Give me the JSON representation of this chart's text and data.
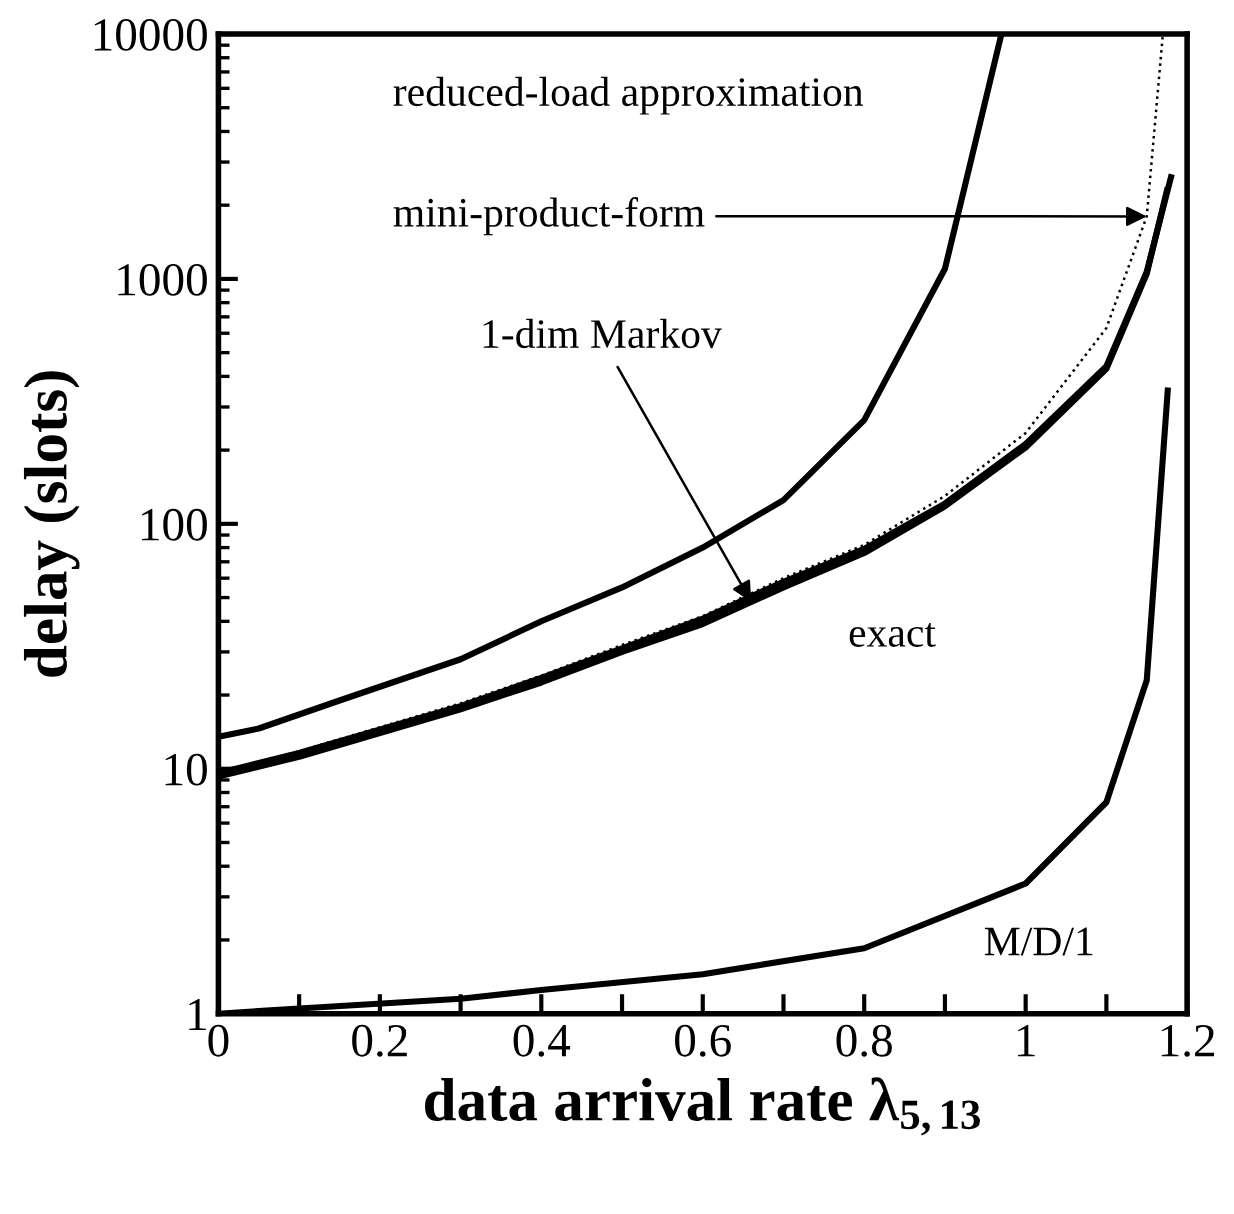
{
  "chart_data": {
    "type": "line",
    "xlabel": "data arrival rate λ$_{5,13}$",
    "ylabel": "delay (slots)",
    "log": "y",
    "xlim": [
      0,
      1.2
    ],
    "ylim": [
      1,
      10000
    ],
    "xticks": [
      0,
      {
        "value": 0.1,
        "label": null
      },
      0.2,
      {
        "value": 0.3,
        "label": null
      },
      0.4,
      {
        "value": 0.5,
        "label": null
      },
      0.6,
      {
        "value": 0.7,
        "label": null
      },
      0.8,
      {
        "value": 0.9,
        "label": null
      },
      1,
      {
        "value": 1.1,
        "label": null
      },
      1.2
    ],
    "yticks": [
      1,
      10,
      100,
      1000,
      10000
    ],
    "grid": false,
    "legend": false,
    "marker": "none",
    "annotations": [
      {
        "text": "mini-product-form",
        "x": 1.15,
        "y": 1800
      },
      {
        "text": "1-dim Markov",
        "x": 0.66,
        "y": 48
      }
    ],
    "series": [
      {
        "name": "reduced-load approximation",
        "color": "#000000",
        "line_style": "solid",
        "x": [
          0,
          0.05,
          0.15,
          0.3,
          0.4,
          0.5,
          0.6,
          0.7,
          0.8,
          0.9,
          0.97
        ],
        "values": [
          13.5,
          14.6,
          19,
          28,
          40,
          55,
          80,
          125,
          265,
          1100,
          10000
        ]
      },
      {
        "color": "#000000",
        "line_style": "dotted",
        "x": [
          0,
          0.1,
          0.3,
          0.4,
          0.5,
          0.6,
          0.7,
          0.8,
          0.9,
          1.0,
          1.1,
          1.15,
          1.17
        ],
        "values": [
          9.5,
          11.8,
          18.5,
          24,
          32,
          42,
          60,
          82,
          130,
          235,
          630,
          1800,
          10000
        ]
      },
      {
        "color": "#000000",
        "line_style": "solid",
        "x": [
          0,
          0.1,
          0.3,
          0.4,
          0.5,
          0.6,
          0.7,
          0.8,
          0.9,
          1.0,
          1.1,
          1.15,
          1.175
        ],
        "values": [
          9.3,
          11.2,
          17.5,
          22.5,
          30,
          39,
          55,
          76,
          118,
          205,
          430,
          1050,
          2300
        ]
      },
      {
        "name": "exact",
        "color": "#000000",
        "line_style": "solid",
        "x": [
          0,
          0.1,
          0.3,
          0.4,
          0.5,
          0.6,
          0.7,
          0.8,
          0.9,
          1.0,
          1.1,
          1.15,
          1.18
        ],
        "values": [
          9.6,
          11.6,
          18,
          23.5,
          31,
          41,
          58,
          79,
          121,
          212,
          440,
          1070,
          2600
        ]
      },
      {
        "name": "M/D/1",
        "color": "#000000",
        "line_style": "solid",
        "x": [
          0,
          0.1,
          0.3,
          0.4,
          0.6,
          0.8,
          1.0,
          1.1,
          1.15,
          1.176
        ],
        "values": [
          1,
          1.05,
          1.15,
          1.25,
          1.45,
          1.85,
          3.4,
          7.3,
          23,
          350
        ]
      }
    ]
  }
}
